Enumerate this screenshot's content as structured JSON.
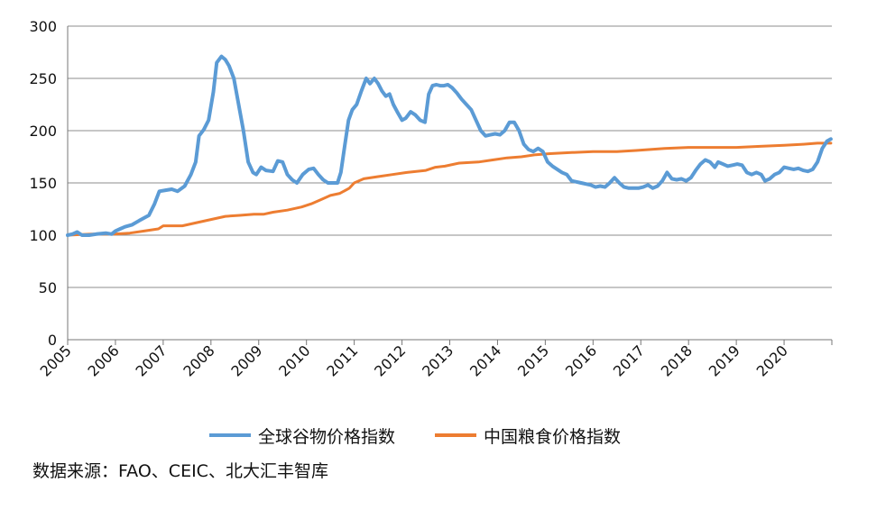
{
  "chart_data": {
    "type": "line",
    "title": "",
    "xlabel": "",
    "ylabel": "",
    "ylim": [
      0,
      300
    ],
    "yticks": [
      0,
      50,
      100,
      150,
      200,
      250,
      300
    ],
    "xlim": [
      2005,
      2021
    ],
    "xtick_labels": [
      "2005",
      "2006",
      "2007",
      "2008",
      "2009",
      "2010",
      "2011",
      "2012",
      "2013",
      "2014",
      "2015",
      "2016",
      "2017",
      "2018",
      "2019",
      "2020"
    ],
    "grid": "horizontal",
    "legend_position": "bottom",
    "series": [
      {
        "name": "全球谷物价格指数",
        "color": "#5b9bd5",
        "points": [
          [
            2005.0,
            100
          ],
          [
            2005.1,
            101
          ],
          [
            2005.2,
            103
          ],
          [
            2005.3,
            100
          ],
          [
            2005.45,
            100
          ],
          [
            2005.6,
            101
          ],
          [
            2005.8,
            102
          ],
          [
            2005.92,
            101
          ],
          [
            2006.0,
            104
          ],
          [
            2006.1,
            106
          ],
          [
            2006.2,
            108
          ],
          [
            2006.35,
            110
          ],
          [
            2006.5,
            114
          ],
          [
            2006.7,
            119
          ],
          [
            2006.82,
            130
          ],
          [
            2006.92,
            142
          ],
          [
            2007.05,
            143
          ],
          [
            2007.18,
            144
          ],
          [
            2007.3,
            142
          ],
          [
            2007.45,
            147
          ],
          [
            2007.58,
            158
          ],
          [
            2007.68,
            170
          ],
          [
            2007.75,
            195
          ],
          [
            2007.85,
            201
          ],
          [
            2007.95,
            210
          ],
          [
            2008.05,
            237
          ],
          [
            2008.12,
            265
          ],
          [
            2008.22,
            271
          ],
          [
            2008.3,
            268
          ],
          [
            2008.38,
            262
          ],
          [
            2008.48,
            250
          ],
          [
            2008.58,
            225
          ],
          [
            2008.68,
            200
          ],
          [
            2008.78,
            170
          ],
          [
            2008.88,
            160
          ],
          [
            2008.95,
            158
          ],
          [
            2009.05,
            165
          ],
          [
            2009.15,
            162
          ],
          [
            2009.3,
            161
          ],
          [
            2009.4,
            171
          ],
          [
            2009.5,
            170
          ],
          [
            2009.6,
            158
          ],
          [
            2009.7,
            153
          ],
          [
            2009.8,
            150
          ],
          [
            2009.92,
            158
          ],
          [
            2010.05,
            163
          ],
          [
            2010.15,
            164
          ],
          [
            2010.25,
            158
          ],
          [
            2010.35,
            153
          ],
          [
            2010.45,
            150
          ],
          [
            2010.55,
            150
          ],
          [
            2010.65,
            150
          ],
          [
            2010.72,
            160
          ],
          [
            2010.8,
            185
          ],
          [
            2010.88,
            210
          ],
          [
            2010.96,
            220
          ],
          [
            2011.05,
            225
          ],
          [
            2011.15,
            238
          ],
          [
            2011.25,
            250
          ],
          [
            2011.33,
            245
          ],
          [
            2011.42,
            250
          ],
          [
            2011.5,
            245
          ],
          [
            2011.58,
            238
          ],
          [
            2011.66,
            233
          ],
          [
            2011.74,
            235
          ],
          [
            2011.82,
            225
          ],
          [
            2011.9,
            218
          ],
          [
            2012.0,
            210
          ],
          [
            2012.08,
            212
          ],
          [
            2012.18,
            218
          ],
          [
            2012.28,
            215
          ],
          [
            2012.38,
            210
          ],
          [
            2012.48,
            208
          ],
          [
            2012.56,
            235
          ],
          [
            2012.64,
            243
          ],
          [
            2012.72,
            244
          ],
          [
            2012.8,
            243
          ],
          [
            2012.88,
            243
          ],
          [
            2012.96,
            244
          ],
          [
            2013.05,
            241
          ],
          [
            2013.15,
            236
          ],
          [
            2013.25,
            230
          ],
          [
            2013.35,
            225
          ],
          [
            2013.45,
            220
          ],
          [
            2013.55,
            210
          ],
          [
            2013.65,
            200
          ],
          [
            2013.75,
            195
          ],
          [
            2013.85,
            196
          ],
          [
            2013.95,
            197
          ],
          [
            2014.05,
            196
          ],
          [
            2014.15,
            200
          ],
          [
            2014.25,
            208
          ],
          [
            2014.35,
            208
          ],
          [
            2014.45,
            200
          ],
          [
            2014.55,
            187
          ],
          [
            2014.65,
            182
          ],
          [
            2014.75,
            180
          ],
          [
            2014.85,
            183
          ],
          [
            2014.95,
            180
          ],
          [
            2015.05,
            170
          ],
          [
            2015.15,
            166
          ],
          [
            2015.25,
            163
          ],
          [
            2015.35,
            160
          ],
          [
            2015.45,
            158
          ],
          [
            2015.55,
            152
          ],
          [
            2015.65,
            151
          ],
          [
            2015.75,
            150
          ],
          [
            2015.85,
            149
          ],
          [
            2015.95,
            148
          ],
          [
            2016.05,
            146
          ],
          [
            2016.15,
            147
          ],
          [
            2016.25,
            146
          ],
          [
            2016.35,
            150
          ],
          [
            2016.45,
            155
          ],
          [
            2016.55,
            150
          ],
          [
            2016.65,
            146
          ],
          [
            2016.75,
            145
          ],
          [
            2016.85,
            145
          ],
          [
            2016.95,
            145
          ],
          [
            2017.05,
            146
          ],
          [
            2017.15,
            148
          ],
          [
            2017.25,
            145
          ],
          [
            2017.35,
            147
          ],
          [
            2017.45,
            152
          ],
          [
            2017.55,
            160
          ],
          [
            2017.65,
            154
          ],
          [
            2017.75,
            153
          ],
          [
            2017.85,
            154
          ],
          [
            2017.95,
            152
          ],
          [
            2018.05,
            155
          ],
          [
            2018.15,
            162
          ],
          [
            2018.25,
            168
          ],
          [
            2018.35,
            172
          ],
          [
            2018.45,
            170
          ],
          [
            2018.55,
            165
          ],
          [
            2018.62,
            170
          ],
          [
            2018.72,
            168
          ],
          [
            2018.82,
            166
          ],
          [
            2018.92,
            167
          ],
          [
            2019.02,
            168
          ],
          [
            2019.12,
            167
          ],
          [
            2019.22,
            160
          ],
          [
            2019.32,
            158
          ],
          [
            2019.42,
            160
          ],
          [
            2019.52,
            158
          ],
          [
            2019.6,
            152
          ],
          [
            2019.7,
            154
          ],
          [
            2019.8,
            158
          ],
          [
            2019.9,
            160
          ],
          [
            2020.0,
            165
          ],
          [
            2020.1,
            164
          ],
          [
            2020.2,
            163
          ],
          [
            2020.3,
            164
          ],
          [
            2020.4,
            162
          ],
          [
            2020.5,
            161
          ],
          [
            2020.6,
            163
          ],
          [
            2020.7,
            170
          ],
          [
            2020.8,
            183
          ],
          [
            2020.9,
            190
          ],
          [
            2020.98,
            192
          ]
        ]
      },
      {
        "name": "中国粮食价格指数",
        "color": "#ed7d31",
        "points": [
          [
            2005.0,
            100
          ],
          [
            2005.5,
            101
          ],
          [
            2005.95,
            101
          ],
          [
            2006.3,
            102
          ],
          [
            2006.6,
            104
          ],
          [
            2006.9,
            106
          ],
          [
            2007.0,
            109
          ],
          [
            2007.4,
            109
          ],
          [
            2007.7,
            112
          ],
          [
            2008.0,
            115
          ],
          [
            2008.3,
            118
          ],
          [
            2008.6,
            119
          ],
          [
            2008.9,
            120
          ],
          [
            2009.1,
            120
          ],
          [
            2009.3,
            122
          ],
          [
            2009.6,
            124
          ],
          [
            2009.9,
            127
          ],
          [
            2010.1,
            130
          ],
          [
            2010.3,
            134
          ],
          [
            2010.5,
            138
          ],
          [
            2010.7,
            140
          ],
          [
            2010.9,
            145
          ],
          [
            2011.0,
            150
          ],
          [
            2011.2,
            154
          ],
          [
            2011.5,
            156
          ],
          [
            2011.8,
            158
          ],
          [
            2012.1,
            160
          ],
          [
            2012.5,
            162
          ],
          [
            2012.7,
            165
          ],
          [
            2012.9,
            166
          ],
          [
            2013.2,
            169
          ],
          [
            2013.6,
            170
          ],
          [
            2013.9,
            172
          ],
          [
            2014.2,
            174
          ],
          [
            2014.5,
            175
          ],
          [
            2014.8,
            177
          ],
          [
            2015.1,
            178
          ],
          [
            2015.5,
            179
          ],
          [
            2016.0,
            180
          ],
          [
            2016.5,
            180
          ],
          [
            2016.9,
            181
          ],
          [
            2017.2,
            182
          ],
          [
            2017.5,
            183
          ],
          [
            2018.0,
            184
          ],
          [
            2018.5,
            184
          ],
          [
            2019.0,
            184
          ],
          [
            2019.5,
            185
          ],
          [
            2020.0,
            186
          ],
          [
            2020.4,
            187
          ],
          [
            2020.7,
            188
          ],
          [
            2020.98,
            188
          ]
        ]
      }
    ]
  },
  "source_text": "数据来源：FAO、CEIC、北大汇丰智库"
}
